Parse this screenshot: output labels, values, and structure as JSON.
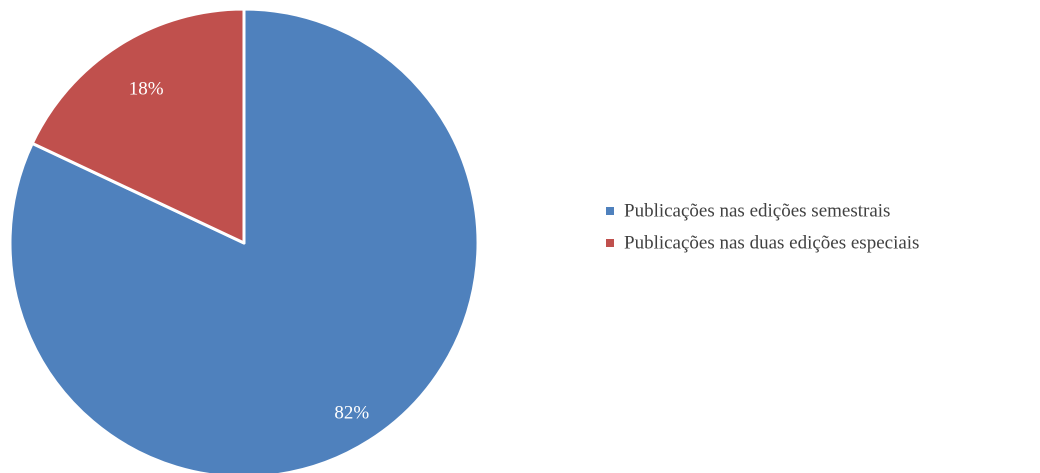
{
  "chart_data": {
    "type": "pie",
    "title": "",
    "start_angle_deg": 0,
    "direction": "clockwise",
    "slices": [
      {
        "name": "Publicações nas edições semestrais",
        "value": 82,
        "label": "82%",
        "color": "#4f81bd"
      },
      {
        "name": "Publicações nas duas edições especiais",
        "value": 18,
        "label": "18%",
        "color": "#c0504d"
      }
    ],
    "legend": {
      "placement": "right",
      "items": [
        {
          "label": "Publicações nas edições semestrais",
          "color": "#4f81bd"
        },
        {
          "label": "Publicações nas duas edições especiais",
          "color": "#c0504d"
        }
      ]
    }
  }
}
